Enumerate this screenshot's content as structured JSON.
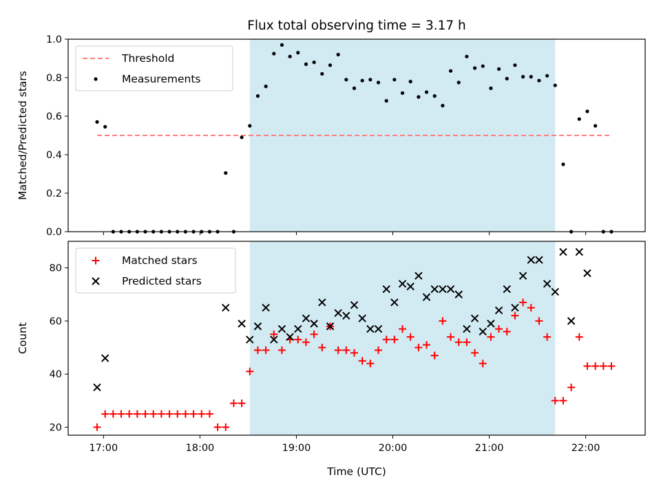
{
  "title": "Flux total observing time = 3.17 h",
  "colors": {
    "threshold": "#ff7f7f",
    "measurement": "#000000",
    "matched": "#ff0000",
    "predicted": "#000000",
    "observing_band": "#add8e6"
  },
  "chart_data": [
    {
      "type": "scatter",
      "panel": "top",
      "ylabel": "Matched/Predicted stars",
      "xlabel": "",
      "xlim": [
        "16:38",
        "22:37"
      ],
      "ylim": [
        0,
        1.0
      ],
      "yticks": [
        0.0,
        0.2,
        0.4,
        0.6,
        0.8,
        1.0
      ],
      "yticklabels": [
        "0.0",
        "0.2",
        "0.4",
        "0.6",
        "0.8",
        "1.0"
      ],
      "grid": false,
      "legend_position": "upper-left",
      "observing_band": {
        "start": "18:31",
        "end": "21:41"
      },
      "threshold": {
        "name": "Threshold",
        "value": 0.5,
        "x_start": "16:56",
        "x_end": "22:15"
      },
      "series": [
        {
          "name": "Measurements",
          "x": [
            "16:56",
            "17:01",
            "17:06",
            "17:11",
            "17:16",
            "17:21",
            "17:26",
            "17:31",
            "17:36",
            "17:41",
            "17:46",
            "17:51",
            "17:56",
            "18:01",
            "18:06",
            "18:11",
            "18:16",
            "18:21",
            "18:26",
            "18:31",
            "18:36",
            "18:41",
            "18:46",
            "18:51",
            "18:56",
            "19:01",
            "19:06",
            "19:11",
            "19:16",
            "19:21",
            "19:26",
            "19:31",
            "19:36",
            "19:41",
            "19:46",
            "19:51",
            "19:56",
            "20:01",
            "20:06",
            "20:11",
            "20:16",
            "20:21",
            "20:26",
            "20:31",
            "20:36",
            "20:41",
            "20:46",
            "20:51",
            "20:56",
            "21:01",
            "21:06",
            "21:11",
            "21:16",
            "21:21",
            "21:26",
            "21:31",
            "21:36",
            "21:41",
            "21:46",
            "21:51",
            "21:56",
            "22:01",
            "22:06",
            "22:11",
            "22:16"
          ],
          "y": [
            0.57,
            0.545,
            0.0,
            0.0,
            0.0,
            0.0,
            0.0,
            0.0,
            0.0,
            0.0,
            0.0,
            0.0,
            0.0,
            0.0,
            0.0,
            0.0,
            0.305,
            0.0,
            0.49,
            0.55,
            0.705,
            0.755,
            0.925,
            0.97,
            0.91,
            0.93,
            0.87,
            0.88,
            0.82,
            0.865,
            0.92,
            0.79,
            0.745,
            0.785,
            0.79,
            0.775,
            0.68,
            0.79,
            0.72,
            0.78,
            0.7,
            0.725,
            0.705,
            0.655,
            0.835,
            0.775,
            0.91,
            0.85,
            0.86,
            0.745,
            0.845,
            0.795,
            0.865,
            0.805,
            0.805,
            0.785,
            0.81,
            0.76,
            0.35,
            0.0,
            0.585,
            0.625,
            0.55,
            0.0,
            0.0
          ]
        }
      ]
    },
    {
      "type": "scatter",
      "panel": "bottom",
      "ylabel": "Count",
      "xlabel": "Time (UTC)",
      "xlim": [
        "16:38",
        "22:37"
      ],
      "xticks": [
        "17:00",
        "18:00",
        "19:00",
        "20:00",
        "21:00",
        "22:00"
      ],
      "ylim": [
        17,
        90
      ],
      "yticks": [
        20,
        40,
        60,
        80
      ],
      "yticklabels": [
        "20",
        "40",
        "60",
        "80"
      ],
      "grid": false,
      "legend_position": "upper-left",
      "observing_band": {
        "start": "18:31",
        "end": "21:41"
      },
      "series": [
        {
          "name": "Matched stars",
          "marker": "plus",
          "x": [
            "16:56",
            "17:01",
            "17:06",
            "17:11",
            "17:16",
            "17:21",
            "17:26",
            "17:31",
            "17:36",
            "17:41",
            "17:46",
            "17:51",
            "17:56",
            "18:01",
            "18:06",
            "18:11",
            "18:16",
            "18:21",
            "18:26",
            "18:31",
            "18:36",
            "18:41",
            "18:46",
            "18:51",
            "18:56",
            "19:01",
            "19:06",
            "19:11",
            "19:16",
            "19:21",
            "19:26",
            "19:31",
            "19:36",
            "19:41",
            "19:46",
            "19:51",
            "19:56",
            "20:01",
            "20:06",
            "20:11",
            "20:16",
            "20:21",
            "20:26",
            "20:31",
            "20:36",
            "20:41",
            "20:46",
            "20:51",
            "20:56",
            "21:01",
            "21:06",
            "21:11",
            "21:16",
            "21:21",
            "21:26",
            "21:31",
            "21:36",
            "21:41",
            "21:46",
            "21:51",
            "21:56",
            "22:01",
            "22:06",
            "22:11",
            "22:16"
          ],
          "y": [
            20,
            25,
            25,
            25,
            25,
            25,
            25,
            25,
            25,
            25,
            25,
            25,
            25,
            25,
            25,
            20,
            20,
            29,
            29,
            41,
            49,
            49,
            55,
            49,
            53,
            53,
            52,
            55,
            50,
            58,
            49,
            49,
            48,
            45,
            44,
            49,
            53,
            53,
            57,
            54,
            50,
            51,
            47,
            60,
            54,
            52,
            52,
            48,
            44,
            54,
            57,
            56,
            62,
            67,
            65,
            60,
            54,
            30,
            30,
            35,
            54,
            43,
            43,
            43,
            43
          ]
        },
        {
          "name": "Predicted stars",
          "marker": "x",
          "x": [
            "16:56",
            "17:01",
            "18:16",
            "18:26",
            "18:31",
            "18:36",
            "18:41",
            "18:46",
            "18:51",
            "18:56",
            "19:01",
            "19:06",
            "19:11",
            "19:16",
            "19:21",
            "19:26",
            "19:31",
            "19:36",
            "19:41",
            "19:46",
            "19:51",
            "19:56",
            "20:01",
            "20:06",
            "20:11",
            "20:16",
            "20:21",
            "20:26",
            "20:31",
            "20:36",
            "20:41",
            "20:46",
            "20:51",
            "20:56",
            "21:01",
            "21:06",
            "21:11",
            "21:16",
            "21:21",
            "21:26",
            "21:31",
            "21:36",
            "21:41",
            "21:46",
            "21:51",
            "21:56",
            "22:01"
          ],
          "y": [
            35,
            46,
            65,
            59,
            53,
            58,
            65,
            53,
            57,
            54,
            57,
            61,
            59,
            67,
            58,
            63,
            62,
            66,
            61,
            57,
            57,
            72,
            67,
            74,
            73,
            77,
            69,
            72,
            72,
            72,
            70,
            57,
            61,
            56,
            59,
            64,
            72,
            65,
            77,
            83,
            83,
            74,
            71,
            86,
            60,
            86,
            78
          ]
        }
      ]
    }
  ]
}
